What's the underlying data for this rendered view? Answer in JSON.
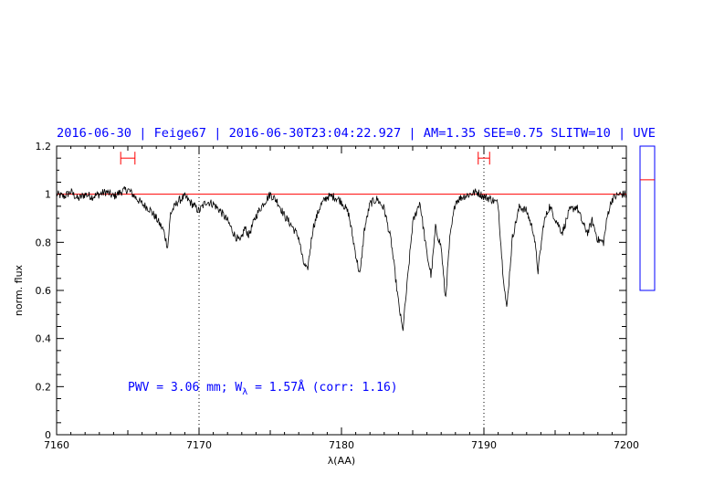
{
  "header": {
    "title": "2016-06-30 | Feige67 | 2016-06-30T23:04:22.927 | AM=1.35 SEE=0.75 SLITW=10 | UVE"
  },
  "colors": {
    "header": "#0000ff",
    "spectrum": "#000000",
    "continuum": "#ff0000",
    "markers": "#ff0000",
    "annotation": "#0000ff",
    "side_box": "#0000ff"
  },
  "annotation": {
    "prefix": "PWV = 3.06 mm; W",
    "subscript": "λ",
    "suffix": " = 1.57Å (corr: 1.16)"
  },
  "side_panel": {
    "box_range": [
      0.6,
      1.2
    ],
    "marker_value": 1.06
  },
  "chart_data": {
    "type": "line",
    "title": "",
    "xlabel": "λ(AA)",
    "ylabel": "norm. flux",
    "xlim": [
      7160,
      7200
    ],
    "ylim": [
      0,
      1.2
    ],
    "x_ticks": [
      "7160",
      "7170",
      "7180",
      "7190",
      "7200"
    ],
    "y_ticks": [
      "0",
      "0.2",
      "0.4",
      "0.6",
      "0.8",
      "1",
      "1.2"
    ],
    "continuum_level": 1.0,
    "vertical_markers": [
      7170,
      7190
    ],
    "error_bars": [
      {
        "center": 7165.0,
        "low": 7164.5,
        "high": 7165.5,
        "y": 1.15
      },
      {
        "center": 7190.0,
        "low": 7189.6,
        "high": 7190.4,
        "y": 1.15
      }
    ],
    "series": [
      {
        "x": [
          7160.0,
          7160.5,
          7161.0,
          7161.5,
          7162.0,
          7162.5,
          7163.0,
          7163.5,
          7164.0,
          7164.5,
          7165.0,
          7165.5,
          7166.0,
          7166.5,
          7167.0,
          7167.5,
          7167.8,
          7168.0,
          7168.5,
          7169.0,
          7169.5,
          7170.0,
          7170.5,
          7171.0,
          7171.5,
          7172.0,
          7172.5,
          7172.9,
          7173.2,
          7173.5,
          7174.0,
          7174.5,
          7175.0,
          7175.5,
          7176.0,
          7176.5,
          7177.0,
          7177.3,
          7177.6,
          7178.0,
          7178.5,
          7179.0,
          7179.5,
          7180.0,
          7180.5,
          7181.0,
          7181.3,
          7181.6,
          7182.0,
          7182.5,
          7183.0,
          7183.5,
          7184.0,
          7184.3,
          7184.6,
          7185.0,
          7185.5,
          7186.0,
          7186.3,
          7186.6,
          7187.0,
          7187.3,
          7187.6,
          7188.0,
          7188.5,
          7189.0,
          7189.5,
          7190.0,
          7190.5,
          7191.0,
          7191.3,
          7191.6,
          7192.0,
          7192.5,
          7193.0,
          7193.5,
          7193.8,
          7194.2,
          7194.6,
          7195.0,
          7195.5,
          7196.0,
          7196.5,
          7197.0,
          7197.3,
          7197.6,
          7198.0,
          7198.4,
          7198.7,
          7199.0,
          7199.5,
          7200.0
        ],
        "values": [
          1.0,
          0.99,
          1.01,
          0.98,
          1.0,
          0.99,
          1.0,
          1.01,
          0.99,
          1.01,
          1.02,
          0.99,
          0.96,
          0.94,
          0.9,
          0.85,
          0.78,
          0.92,
          0.97,
          0.99,
          0.96,
          0.93,
          0.97,
          0.96,
          0.93,
          0.89,
          0.83,
          0.8,
          0.86,
          0.83,
          0.91,
          0.96,
          1.0,
          0.97,
          0.91,
          0.87,
          0.82,
          0.72,
          0.68,
          0.86,
          0.95,
          0.99,
          0.99,
          0.97,
          0.92,
          0.75,
          0.66,
          0.85,
          0.96,
          0.98,
          0.94,
          0.8,
          0.55,
          0.43,
          0.62,
          0.88,
          0.97,
          0.75,
          0.66,
          0.86,
          0.78,
          0.56,
          0.81,
          0.97,
          0.99,
          1.0,
          1.01,
          0.99,
          0.98,
          0.96,
          0.7,
          0.52,
          0.82,
          0.95,
          0.93,
          0.84,
          0.68,
          0.88,
          0.95,
          0.9,
          0.84,
          0.93,
          0.95,
          0.87,
          0.84,
          0.89,
          0.81,
          0.8,
          0.92,
          0.98,
          1.0,
          1.0
        ]
      }
    ]
  }
}
